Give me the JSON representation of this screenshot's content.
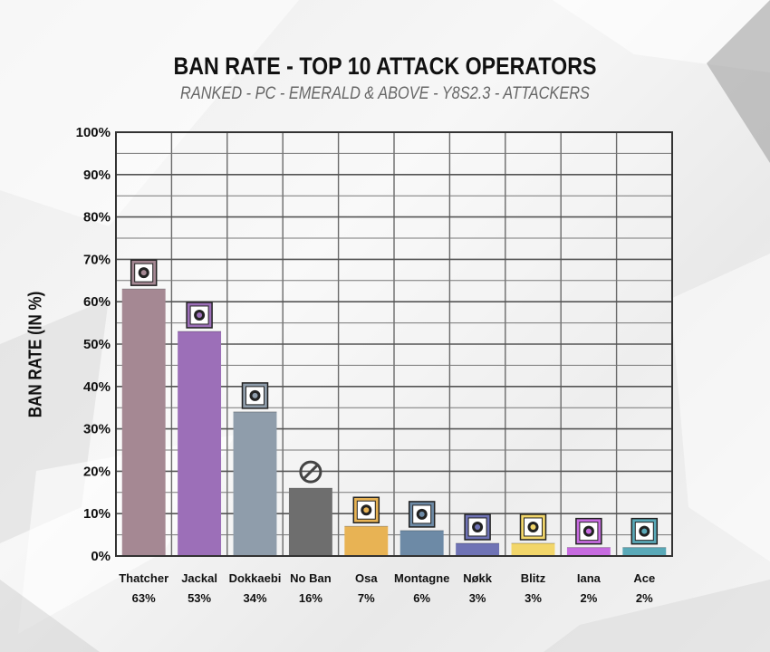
{
  "chart_data": {
    "type": "bar",
    "title": "BAN RATE - TOP 10 ATTACK OPERATORS",
    "subtitle": "RANKED - PC - EMERALD & ABOVE - Y8S2.3 - ATTACKERS",
    "ylabel": "BAN RATE (IN %)",
    "xlabel": "",
    "ylim": [
      0,
      100
    ],
    "yticks": [
      "0%",
      "10%",
      "20%",
      "30%",
      "40%",
      "50%",
      "60%",
      "70%",
      "80%",
      "90%",
      "100%"
    ],
    "grid": true,
    "categories": [
      "Thatcher",
      "Jackal",
      "Dokkaebi",
      "No Ban",
      "Osa",
      "Montagne",
      "Nøkk",
      "Blitz",
      "Iana",
      "Ace"
    ],
    "values": [
      63,
      53,
      34,
      16,
      7,
      6,
      3,
      3,
      2,
      2
    ],
    "value_labels": [
      "63%",
      "53%",
      "34%",
      "16%",
      "7%",
      "6%",
      "3%",
      "3%",
      "2%",
      "2%"
    ],
    "bar_colors": [
      "#a58893",
      "#9c6fb8",
      "#8f9dab",
      "#6e6e6e",
      "#e8b354",
      "#6d8aa6",
      "#6f73b5",
      "#f2d66a",
      "#c76be0",
      "#5aa9b8"
    ],
    "icons": [
      "thatcher-icon",
      "jackal-icon",
      "dokkaebi-icon",
      "no-ban-icon",
      "osa-icon",
      "montagne-icon",
      "nokk-icon",
      "blitz-icon",
      "iana-icon",
      "ace-icon"
    ]
  }
}
